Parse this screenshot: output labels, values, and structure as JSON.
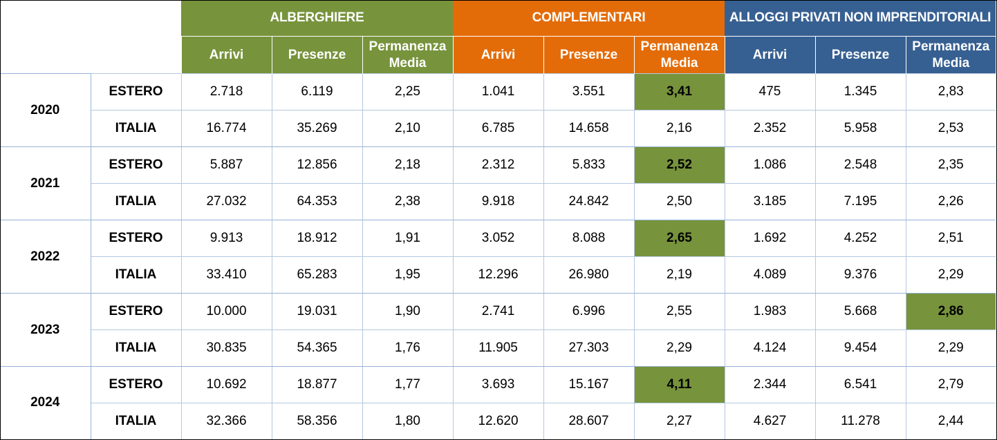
{
  "groups": {
    "alberghiere": "ALBERGHIERE",
    "complementari": "COMPLEMENTARI",
    "alloggi": "ALLOGGI PRIVATI NON IMPRENDITORIALI"
  },
  "columns": {
    "arrivi": "Arrivi",
    "presenze": "Presenze",
    "permanenza_1": "Permanenza",
    "permanenza_2": "Media"
  },
  "colors": {
    "alberghiere": "#77933c",
    "complementari": "#e36c09",
    "alloggi": "#376092",
    "highlight": "#77933c"
  },
  "years": [
    {
      "year": "2020",
      "rows": [
        {
          "kind": "ESTERO",
          "values": [
            "2.718",
            "6.119",
            "2,25",
            "1.041",
            "3.551",
            "3,41",
            "475",
            "1.345",
            "2,83"
          ],
          "highlight_col": 5
        },
        {
          "kind": "ITALIA",
          "values": [
            "16.774",
            "35.269",
            "2,10",
            "6.785",
            "14.658",
            "2,16",
            "2.352",
            "5.958",
            "2,53"
          ]
        }
      ]
    },
    {
      "year": "2021",
      "rows": [
        {
          "kind": "ESTERO",
          "values": [
            "5.887",
            "12.856",
            "2,18",
            "2.312",
            "5.833",
            "2,52",
            "1.086",
            "2.548",
            "2,35"
          ],
          "highlight_col": 5
        },
        {
          "kind": "ITALIA",
          "values": [
            "27.032",
            "64.353",
            "2,38",
            "9.918",
            "24.842",
            "2,50",
            "3.185",
            "7.195",
            "2,26"
          ]
        }
      ]
    },
    {
      "year": "2022",
      "rows": [
        {
          "kind": "ESTERO",
          "values": [
            "9.913",
            "18.912",
            "1,91",
            "3.052",
            "8.088",
            "2,65",
            "1.692",
            "4.252",
            "2,51"
          ],
          "highlight_col": 5
        },
        {
          "kind": "ITALIA",
          "values": [
            "33.410",
            "65.283",
            "1,95",
            "12.296",
            "26.980",
            "2,19",
            "4.089",
            "9.376",
            "2,29"
          ]
        }
      ]
    },
    {
      "year": "2023",
      "rows": [
        {
          "kind": "ESTERO",
          "values": [
            "10.000",
            "19.031",
            "1,90",
            "2.741",
            "6.996",
            "2,55",
            "1.983",
            "5.668",
            "2,86"
          ],
          "highlight_col": 8
        },
        {
          "kind": "ITALIA",
          "values": [
            "30.835",
            "54.365",
            "1,76",
            "11.905",
            "27.303",
            "2,29",
            "4.124",
            "9.454",
            "2,29"
          ]
        }
      ]
    },
    {
      "year": "2024",
      "rows": [
        {
          "kind": "ESTERO",
          "values": [
            "10.692",
            "18.877",
            "1,77",
            "3.693",
            "15.167",
            "4,11",
            "2.344",
            "6.541",
            "2,79"
          ],
          "highlight_col": 5
        },
        {
          "kind": "ITALIA",
          "values": [
            "32.366",
            "58.356",
            "1,80",
            "12.620",
            "28.607",
            "2,27",
            "4.627",
            "11.278",
            "2,44"
          ]
        }
      ]
    }
  ]
}
